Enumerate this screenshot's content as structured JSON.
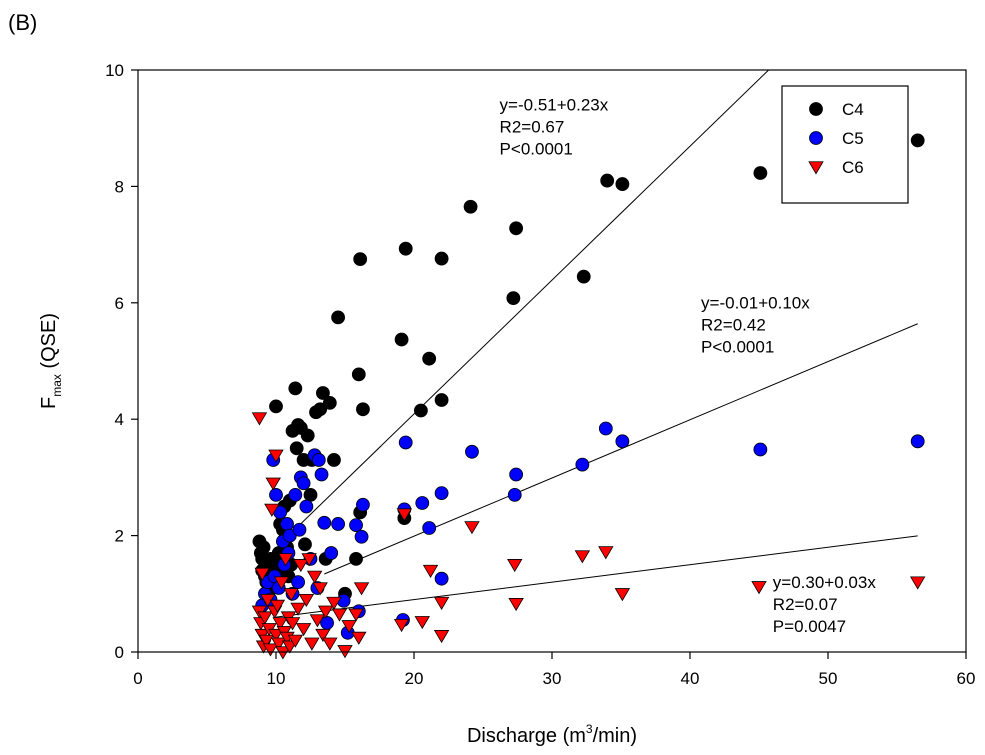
{
  "panel_label": "(B)",
  "chart_data": {
    "type": "scatter",
    "title": "",
    "xlabel": "Discharge (m3/min)",
    "ylabel": "Fmax (QSE)",
    "xlabel_parts": {
      "pre": "Discharge (m",
      "sup": "3",
      "post": "/min)"
    },
    "ylabel_parts": {
      "main": "F",
      "sub": "max",
      "post": " (QSE)"
    },
    "xlim": [
      0,
      60
    ],
    "ylim": [
      0,
      10
    ],
    "xticks": [
      0,
      10,
      20,
      30,
      40,
      50,
      60
    ],
    "yticks": [
      0,
      2,
      4,
      6,
      8,
      10
    ],
    "grid": false,
    "legend_position": "top-right",
    "series": [
      {
        "name": "C4",
        "marker": "circle",
        "color": "#000000",
        "points": [
          [
            8.8,
            1.9
          ],
          [
            8.9,
            1.7
          ],
          [
            9.0,
            1.6
          ],
          [
            9.0,
            1.4
          ],
          [
            9.1,
            1.8
          ],
          [
            9.2,
            1.3
          ],
          [
            9.3,
            1.2
          ],
          [
            9.4,
            1.5
          ],
          [
            9.5,
            1.4
          ],
          [
            9.6,
            1.6
          ],
          [
            9.7,
            1.1
          ],
          [
            9.8,
            1.3
          ],
          [
            10.0,
            1.5
          ],
          [
            10.0,
            4.22
          ],
          [
            10.2,
            1.7
          ],
          [
            10.3,
            2.2
          ],
          [
            10.4,
            1.5
          ],
          [
            10.5,
            2.1
          ],
          [
            10.6,
            2.5
          ],
          [
            10.7,
            1.4
          ],
          [
            10.8,
            1.8
          ],
          [
            10.9,
            1.3
          ],
          [
            11.0,
            2.6
          ],
          [
            11.1,
            1.5
          ],
          [
            11.2,
            3.8
          ],
          [
            11.4,
            4.53
          ],
          [
            11.5,
            3.5
          ],
          [
            11.6,
            3.9
          ],
          [
            11.8,
            3.85
          ],
          [
            12.0,
            3.3
          ],
          [
            12.1,
            1.85
          ],
          [
            12.3,
            3.72
          ],
          [
            12.5,
            2.7
          ],
          [
            12.6,
            3.3
          ],
          [
            12.9,
            4.12
          ],
          [
            13.2,
            4.17
          ],
          [
            13.4,
            4.45
          ],
          [
            13.6,
            1.6
          ],
          [
            13.9,
            4.28
          ],
          [
            14.2,
            3.3
          ],
          [
            14.5,
            5.75
          ],
          [
            15.0,
            1.0
          ],
          [
            15.8,
            1.6
          ],
          [
            16.0,
            4.77
          ],
          [
            16.1,
            2.4
          ],
          [
            16.1,
            6.75
          ],
          [
            16.3,
            4.17
          ],
          [
            19.1,
            5.37
          ],
          [
            19.3,
            2.3
          ],
          [
            19.4,
            6.93
          ],
          [
            20.5,
            4.15
          ],
          [
            21.1,
            5.04
          ],
          [
            22.0,
            4.33
          ],
          [
            22.0,
            6.76
          ],
          [
            24.1,
            7.65
          ],
          [
            27.2,
            6.08
          ],
          [
            27.4,
            7.28
          ],
          [
            32.3,
            6.45
          ],
          [
            34.0,
            8.1
          ],
          [
            35.1,
            8.04
          ],
          [
            45.1,
            8.23
          ],
          [
            56.5,
            8.79
          ]
        ]
      },
      {
        "name": "C5",
        "marker": "circle",
        "color": "#0000ff",
        "points": [
          [
            9.0,
            0.8
          ],
          [
            9.2,
            1.0
          ],
          [
            9.4,
            1.2
          ],
          [
            9.6,
            0.9
          ],
          [
            9.8,
            3.3
          ],
          [
            9.9,
            1.3
          ],
          [
            10.0,
            2.7
          ],
          [
            10.2,
            1.1
          ],
          [
            10.3,
            2.4
          ],
          [
            10.5,
            1.9
          ],
          [
            10.6,
            1.5
          ],
          [
            10.8,
            2.2
          ],
          [
            10.9,
            1.7
          ],
          [
            11.0,
            2.0
          ],
          [
            11.2,
            1.0
          ],
          [
            11.4,
            2.7
          ],
          [
            11.6,
            1.2
          ],
          [
            11.7,
            2.1
          ],
          [
            11.8,
            3.0
          ],
          [
            12.0,
            2.9
          ],
          [
            12.2,
            2.5
          ],
          [
            12.5,
            1.6
          ],
          [
            12.8,
            3.38
          ],
          [
            13.0,
            1.1
          ],
          [
            13.1,
            3.3
          ],
          [
            13.3,
            3.05
          ],
          [
            13.5,
            2.22
          ],
          [
            13.7,
            0.5
          ],
          [
            14.0,
            1.7
          ],
          [
            14.5,
            2.2
          ],
          [
            14.9,
            0.88
          ],
          [
            15.2,
            0.33
          ],
          [
            15.8,
            2.18
          ],
          [
            16.0,
            0.7
          ],
          [
            16.2,
            1.98
          ],
          [
            16.3,
            2.53
          ],
          [
            19.3,
            2.45
          ],
          [
            19.4,
            3.6
          ],
          [
            19.2,
            0.55
          ],
          [
            20.6,
            2.56
          ],
          [
            21.1,
            2.13
          ],
          [
            22.0,
            2.73
          ],
          [
            22.0,
            1.26
          ],
          [
            24.2,
            3.44
          ],
          [
            27.4,
            3.05
          ],
          [
            27.3,
            2.7
          ],
          [
            32.2,
            3.22
          ],
          [
            33.9,
            3.84
          ],
          [
            35.1,
            3.62
          ],
          [
            45.1,
            3.48
          ],
          [
            56.5,
            3.62
          ]
        ]
      },
      {
        "name": "C6",
        "marker": "triangle-down",
        "color": "#ff0000",
        "points": [
          [
            8.8,
            4.02
          ],
          [
            8.8,
            0.7
          ],
          [
            8.9,
            0.5
          ],
          [
            9.0,
            0.3
          ],
          [
            9.0,
            1.35
          ],
          [
            9.1,
            0.1
          ],
          [
            9.2,
            0.6
          ],
          [
            9.3,
            0.2
          ],
          [
            9.4,
            0.9
          ],
          [
            9.5,
            0.4
          ],
          [
            9.6,
            0.05
          ],
          [
            9.7,
            2.45
          ],
          [
            9.8,
            2.9
          ],
          [
            9.9,
            0.7
          ],
          [
            10.0,
            3.38
          ],
          [
            10.0,
            0.3
          ],
          [
            10.1,
            0.8
          ],
          [
            10.2,
            0.15
          ],
          [
            10.3,
            0.5
          ],
          [
            10.4,
            1.2
          ],
          [
            10.5,
            0.0
          ],
          [
            10.6,
            0.35
          ],
          [
            10.7,
            1.6
          ],
          [
            10.8,
            0.25
          ],
          [
            10.9,
            0.6
          ],
          [
            11.0,
            0.1
          ],
          [
            11.1,
            1.0
          ],
          [
            11.2,
            0.5
          ],
          [
            11.4,
            0.2
          ],
          [
            11.6,
            0.75
          ],
          [
            11.8,
            1.5
          ],
          [
            12.0,
            0.4
          ],
          [
            12.2,
            0.9
          ],
          [
            12.4,
            1.6
          ],
          [
            12.6,
            0.15
          ],
          [
            12.8,
            1.3
          ],
          [
            13.0,
            0.55
          ],
          [
            13.2,
            1.1
          ],
          [
            13.4,
            0.3
          ],
          [
            13.6,
            0.7
          ],
          [
            13.9,
            0.15
          ],
          [
            14.2,
            0.85
          ],
          [
            14.6,
            0.65
          ],
          [
            15.0,
            0.02
          ],
          [
            15.3,
            0.45
          ],
          [
            15.8,
            0.65
          ],
          [
            16.0,
            0.25
          ],
          [
            16.2,
            1.1
          ],
          [
            19.1,
            0.47
          ],
          [
            19.3,
            2.37
          ],
          [
            20.6,
            0.52
          ],
          [
            21.2,
            1.4
          ],
          [
            22.0,
            0.28
          ],
          [
            22.0,
            0.85
          ],
          [
            24.2,
            2.15
          ],
          [
            27.3,
            1.5
          ],
          [
            27.4,
            0.83
          ],
          [
            32.2,
            1.65
          ],
          [
            33.9,
            1.72
          ],
          [
            35.1,
            1.0
          ],
          [
            45.0,
            1.12
          ],
          [
            56.5,
            1.2
          ]
        ]
      }
    ],
    "regressions": [
      {
        "series": "C4",
        "intercept": -0.51,
        "slope": 0.23,
        "x_range": [
          11.8,
          56.5
        ],
        "lines": [
          "y=-0.51+0.23x",
          "R2=0.67",
          "P<0.0001"
        ],
        "label_at": [
          26.2,
          9.3
        ]
      },
      {
        "series": "C5",
        "intercept": -0.01,
        "slope": 0.1,
        "x_range": [
          13.5,
          56.5
        ],
        "lines": [
          "y=-0.01+0.10x",
          "R2=0.42",
          "P<0.0001"
        ],
        "label_at": [
          40.8,
          5.9
        ]
      },
      {
        "series": "C6",
        "intercept": 0.3,
        "slope": 0.03,
        "x_range": [
          10.0,
          56.5
        ],
        "lines": [
          "y=0.30+0.03x",
          "R2=0.07",
          "P=0.0047"
        ],
        "label_at": [
          46.0,
          1.1
        ]
      }
    ]
  }
}
